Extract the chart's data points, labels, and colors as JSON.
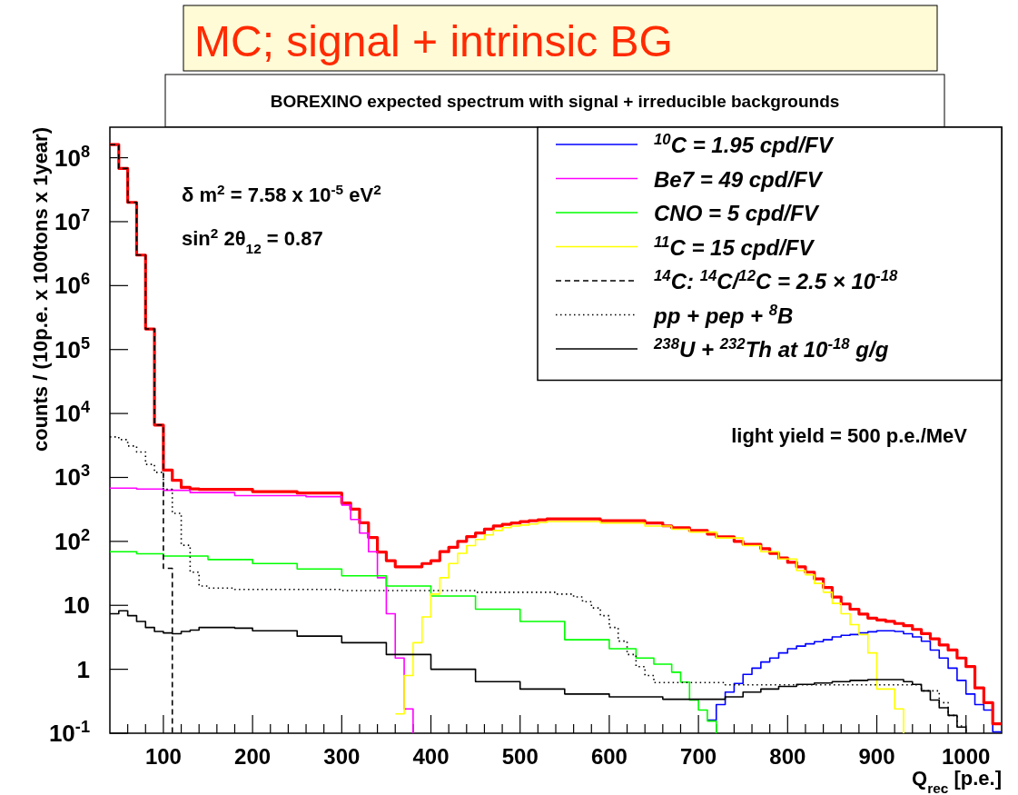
{
  "chart_data": {
    "type": "step",
    "title": "MC; signal + intrinsic BG",
    "subtitle": "BOREXINO expected spectrum with signal + irreducible backgrounds",
    "xlabel": "Q$_{rec}$ [p.e.]",
    "ylabel": "counts / (10p.e. x 100tons x 1year)",
    "annotations": [
      "δ m$^{2}$ = 7.58 x 10$^{-5}$ eV$^{2}$",
      "sin$^{2}$ 2θ$_{12}$ = 0.87",
      "light yield = 500 p.e./MeV"
    ],
    "log": "y",
    "legend": "top right",
    "xlim": [
      40,
      1040
    ],
    "ylim": [
      0.1,
      300000000
    ],
    "xticks": [
      {
        "value": 60,
        "label": null
      },
      {
        "value": 80,
        "label": null
      },
      100,
      {
        "value": 120,
        "label": null
      },
      {
        "value": 140,
        "label": null
      },
      {
        "value": 160,
        "label": null
      },
      {
        "value": 180,
        "label": null
      },
      200,
      {
        "value": 220,
        "label": null
      },
      {
        "value": 240,
        "label": null
      },
      {
        "value": 260,
        "label": null
      },
      {
        "value": 280,
        "label": null
      },
      300,
      {
        "value": 320,
        "label": null
      },
      {
        "value": 340,
        "label": null
      },
      {
        "value": 360,
        "label": null
      },
      {
        "value": 380,
        "label": null
      },
      400,
      {
        "value": 420,
        "label": null
      },
      {
        "value": 440,
        "label": null
      },
      {
        "value": 460,
        "label": null
      },
      {
        "value": 480,
        "label": null
      },
      500,
      {
        "value": 520,
        "label": null
      },
      {
        "value": 540,
        "label": null
      },
      {
        "value": 560,
        "label": null
      },
      {
        "value": 580,
        "label": null
      },
      600,
      {
        "value": 620,
        "label": null
      },
      {
        "value": 640,
        "label": null
      },
      {
        "value": 660,
        "label": null
      },
      {
        "value": 680,
        "label": null
      },
      700,
      {
        "value": 720,
        "label": null
      },
      {
        "value": 740,
        "label": null
      },
      {
        "value": 760,
        "label": null
      },
      {
        "value": 780,
        "label": null
      },
      800,
      {
        "value": 820,
        "label": null
      },
      {
        "value": 840,
        "label": null
      },
      {
        "value": 860,
        "label": null
      },
      {
        "value": 880,
        "label": null
      },
      900,
      {
        "value": 920,
        "label": null
      },
      {
        "value": 940,
        "label": null
      },
      {
        "value": 960,
        "label": null
      },
      {
        "value": 980,
        "label": null
      },
      1000,
      {
        "value": 1020,
        "label": null
      }
    ],
    "yticks": [
      {
        "value": 0.1,
        "label": "10$^{-1}$"
      },
      1,
      10,
      {
        "value": 100,
        "label": "10$^{2}$"
      },
      {
        "value": 1000,
        "label": "10$^{3}$"
      },
      {
        "value": 10000,
        "label": "10$^{4}$"
      },
      {
        "value": 100000,
        "label": "10$^{5}$"
      },
      {
        "value": 1000000,
        "label": "10$^{6}$"
      },
      {
        "value": 10000000,
        "label": "10$^{7}$"
      },
      {
        "value": 100000000,
        "label": "10$^{8}$"
      }
    ],
    "series": [
      {
        "color": "#0000ff",
        "x": [
          710,
          720,
          730,
          740,
          750,
          760,
          770,
          780,
          790,
          800,
          810,
          820,
          830,
          840,
          850,
          860,
          870,
          880,
          890,
          900,
          920,
          930,
          940,
          950,
          960,
          970,
          980,
          990,
          1000,
          1010,
          1020,
          1030,
          1040
        ],
        "values": [
          0.16,
          0.28,
          0.44,
          0.6,
          0.83,
          1.04,
          1.3,
          1.5,
          1.8,
          2.1,
          2.3,
          2.5,
          2.7,
          2.9,
          3.2,
          3.4,
          3.5,
          3.7,
          3.85,
          4,
          3.9,
          3.6,
          3.2,
          2.75,
          2,
          1.5,
          1.04,
          0.67,
          0.41,
          0.28,
          0.23,
          0.105,
          0.105
        ],
        "name": "$^{10}$C = 1.95 cpd/FV"
      },
      {
        "color": "#ff0000",
        "x": [
          40,
          50,
          60,
          70,
          80,
          90,
          100,
          110,
          120,
          130,
          140,
          200,
          250,
          300,
          310,
          320,
          330,
          340,
          350,
          360,
          390,
          400,
          410,
          420,
          430,
          440,
          450,
          460,
          470,
          480,
          490,
          500,
          510,
          520,
          530,
          590,
          640,
          660,
          670,
          690,
          710,
          720,
          740,
          750,
          770,
          780,
          790,
          800,
          810,
          820,
          830,
          840,
          850,
          860,
          870,
          880,
          890,
          900,
          910,
          920,
          930,
          940,
          950,
          960,
          970,
          980,
          990,
          1000,
          1010,
          1020,
          1030,
          1040
        ],
        "values": [
          160000000,
          68000000,
          20000000,
          3000000,
          210000,
          6600,
          1300,
          900,
          700,
          660,
          650,
          600,
          570,
          400,
          320,
          195,
          115,
          68,
          50,
          40,
          45,
          50,
          69,
          81,
          100,
          119,
          135,
          155,
          174,
          185,
          194,
          204,
          211,
          218,
          224,
          211,
          194,
          175,
          164,
          148,
          130,
          118,
          100,
          90,
          77,
          65,
          55,
          47,
          40,
          33,
          26,
          19,
          13.5,
          10.5,
          8.7,
          7.3,
          6.3,
          5.9,
          5.6,
          5.2,
          4.8,
          4.2,
          3.6,
          3,
          2.4,
          2,
          1.5,
          1.1,
          0.51,
          0.3,
          0.14,
          0.14
        ]
      },
      {
        "color": "#ff00ff",
        "x": [
          40,
          70,
          100,
          130,
          180,
          260,
          300,
          310,
          320,
          330,
          340,
          350,
          360,
          370,
          380
        ],
        "values": [
          680,
          660,
          630,
          580,
          520,
          500,
          370,
          220,
          135,
          69,
          27,
          7.4,
          1.5,
          0.24,
          0.1
        ],
        "name": "Be7 = 49 cpd/FV"
      },
      {
        "color": "#00ff00",
        "x": [
          40,
          70,
          100,
          150,
          200,
          250,
          300,
          350,
          400,
          450,
          500,
          550,
          600,
          630,
          650,
          670,
          680,
          690,
          700,
          710,
          720
        ],
        "values": [
          69,
          64,
          59,
          52,
          45,
          37,
          29,
          20,
          14,
          8.7,
          5.6,
          2.9,
          2.1,
          1.5,
          1.2,
          0.9,
          0.63,
          0.33,
          0.23,
          0.155,
          0.1
        ],
        "name": "CNO = 5 cpd/FV"
      },
      {
        "color": "#ffff00",
        "x": [
          360,
          370,
          380,
          390,
          400,
          410,
          420,
          430,
          440,
          450,
          460,
          470,
          480,
          490,
          500,
          510,
          520,
          530,
          540,
          590,
          640,
          670,
          690,
          720,
          750,
          770,
          790,
          810,
          820,
          830,
          840,
          850,
          860,
          870,
          880,
          890,
          900,
          920,
          930
        ],
        "values": [
          0.2,
          0.8,
          2.6,
          6.6,
          15,
          27,
          45,
          65,
          86,
          107,
          126,
          148,
          164,
          174,
          180,
          187,
          198,
          204,
          204,
          194,
          174,
          155,
          140,
          113,
          86,
          69,
          53,
          35,
          30,
          22,
          16,
          10.7,
          7.4,
          5,
          3.5,
          1.8,
          0.49,
          0.24,
          0.1
        ],
        "name": "$^{11}$C = 15 cpd/FV"
      },
      {
        "color": "#000000",
        "line_style": "dashed",
        "x": [
          40,
          50,
          60,
          70,
          80,
          90,
          100,
          110
        ],
        "values": [
          160000000,
          68000000,
          20000000,
          3000000,
          210000,
          6600,
          38,
          0.1
        ],
        "name": "$^{14}$C: $^{14}$C/$^{12}$C = 2.5 × 10$^{-18}$"
      },
      {
        "color": "#000000",
        "line_style": "dotted",
        "x": [
          40,
          50,
          60,
          70,
          80,
          90,
          100,
          110,
          120,
          130,
          140,
          150,
          180,
          300,
          450,
          540,
          560,
          570,
          580,
          590,
          600,
          610,
          620,
          630,
          640,
          650,
          730,
          950,
          970,
          980,
          990,
          1000
        ],
        "values": [
          4300,
          3900,
          3100,
          2500,
          1600,
          1200,
          650,
          275,
          87,
          33,
          20,
          18.6,
          17.7,
          17,
          16,
          15,
          13.5,
          11.4,
          9.1,
          6.9,
          4.5,
          2.76,
          1.7,
          1.1,
          0.8,
          0.62,
          0.57,
          0.46,
          0.3,
          0.19,
          0.13,
          0.1
        ],
        "name": "pp + pep + $^{8}$B"
      },
      {
        "color": "#000000",
        "x": [
          40,
          50,
          60,
          70,
          80,
          90,
          100,
          110,
          120,
          130,
          140,
          180,
          200,
          250,
          300,
          350,
          400,
          450,
          500,
          550,
          600,
          660,
          730,
          750,
          770,
          790,
          810,
          830,
          850,
          870,
          890,
          930,
          940,
          950,
          960,
          970,
          980,
          990,
          1000
        ],
        "values": [
          7.4,
          8.2,
          6.9,
          5.6,
          4.5,
          3.9,
          3.7,
          3.6,
          3.9,
          4.1,
          4.5,
          4.4,
          4,
          3.3,
          2.6,
          1.7,
          1,
          0.64,
          0.49,
          0.41,
          0.37,
          0.34,
          0.37,
          0.44,
          0.49,
          0.54,
          0.58,
          0.61,
          0.64,
          0.67,
          0.69,
          0.64,
          0.58,
          0.46,
          0.33,
          0.25,
          0.19,
          0.125,
          0.1
        ],
        "name": "$^{238}$U + $^{232}$Th at 10$^{-18}$ g/g"
      }
    ]
  }
}
